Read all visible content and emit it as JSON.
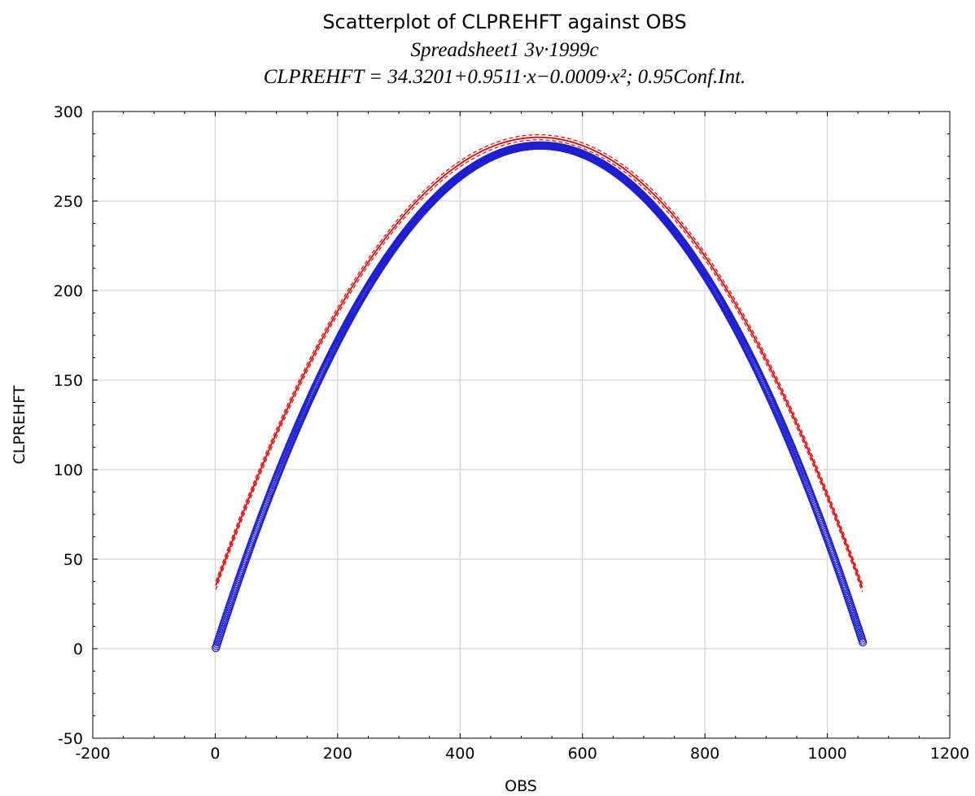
{
  "chart_data": {
    "type": "scatter",
    "title": "Scatterplot of CLPREHFT against OBS",
    "subtitle": "Spreadsheet1 3v·1999c",
    "equation": "CLPREHFT = 34.3201+0.9511·x−0.0009·x²; 0.95Conf.Int.",
    "xlabel": "OBS",
    "ylabel": "CLPREHFT",
    "xlim": [
      -200,
      1200
    ],
    "ylim": [
      -50,
      300
    ],
    "x_ticks": [
      -200,
      0,
      200,
      400,
      600,
      800,
      1000,
      1200
    ],
    "y_ticks": [
      -50,
      0,
      50,
      100,
      150,
      200,
      250,
      300
    ],
    "grid": true,
    "legend": "none",
    "points": {
      "model": "parabola through observed shape",
      "x_range": [
        1,
        1058
      ],
      "vertex": [
        531,
        281
      ],
      "y_at_ends": 2,
      "count": 1058,
      "marker": "open-circle",
      "color": "#1f1fd0"
    },
    "fit": {
      "coefficients": {
        "a": 34.3201,
        "b": 0.9511,
        "c": -0.0009
      },
      "x_range": [
        1,
        1058
      ],
      "color": "#e00000",
      "conf_int": 0.95
    }
  }
}
